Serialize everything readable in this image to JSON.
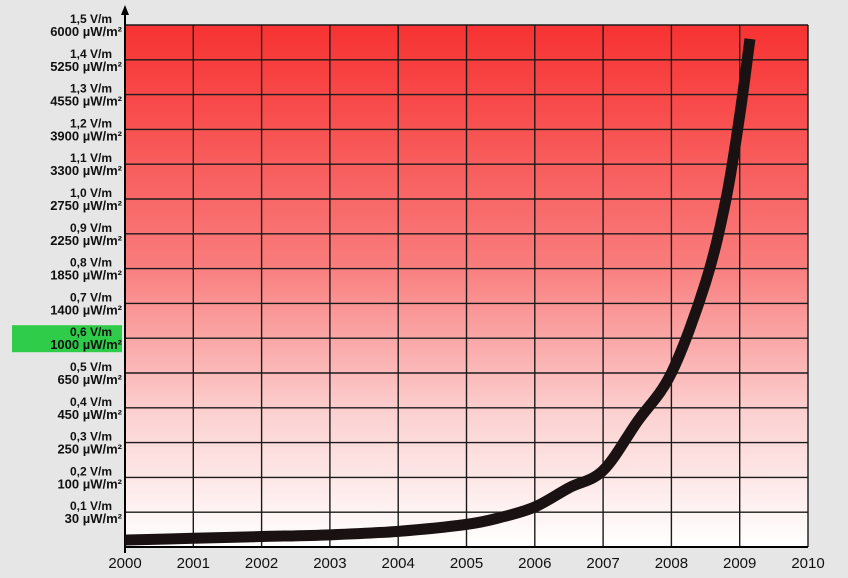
{
  "chart_data": {
    "type": "line",
    "title": "",
    "xlabel": "",
    "ylabel": "",
    "xlim": [
      2000,
      2010
    ],
    "ylim": [
      0,
      15
    ],
    "grid": true,
    "x_ticks": [
      "2000",
      "2001",
      "2002",
      "2003",
      "2004",
      "2005",
      "2006",
      "2007",
      "2008",
      "2009",
      "2010"
    ],
    "y_ticks": [
      {
        "field": "0,1 V/m",
        "power": "30 µW/m²",
        "highlight": false
      },
      {
        "field": "0,2 V/m",
        "power": "100 µW/m²",
        "highlight": false
      },
      {
        "field": "0,3 V/m",
        "power": "250 µW/m²",
        "highlight": false
      },
      {
        "field": "0,4 V/m",
        "power": "450 µW/m²",
        "highlight": false
      },
      {
        "field": "0,5 V/m",
        "power": "650 µW/m²",
        "highlight": false
      },
      {
        "field": "0,6 V/m",
        "power": "1000 µW/m²",
        "highlight": true
      },
      {
        "field": "0,7 V/m",
        "power": "1400 µW/m²",
        "highlight": false
      },
      {
        "field": "0,8 V/m",
        "power": "1850 µW/m²",
        "highlight": false
      },
      {
        "field": "0,9 V/m",
        "power": "2250 µW/m²",
        "highlight": false
      },
      {
        "field": "1,0 V/m",
        "power": "2750 µW/m²",
        "highlight": false
      },
      {
        "field": "1,1 V/m",
        "power": "3300 µW/m²",
        "highlight": false
      },
      {
        "field": "1,2 V/m",
        "power": "3900 µW/m²",
        "highlight": false
      },
      {
        "field": "1,3 V/m",
        "power": "4550 µW/m²",
        "highlight": false
      },
      {
        "field": "1,4 V/m",
        "power": "5250 µW/m²",
        "highlight": false
      },
      {
        "field": "1,5 V/m",
        "power": "6000 µW/m²",
        "highlight": false
      }
    ],
    "series": [
      {
        "x": [
          2000,
          2001,
          2002,
          2003,
          2004,
          2005,
          2005.5,
          2006,
          2006.5,
          2007,
          2007.5,
          2008,
          2008.5,
          2008.8,
          2009,
          2009.15
        ],
        "y": [
          0.2,
          0.25,
          0.3,
          0.35,
          0.45,
          0.65,
          0.85,
          1.15,
          1.7,
          2.2,
          3.6,
          5.0,
          7.6,
          10.0,
          12.4,
          14.6
        ]
      }
    ],
    "colors": {
      "background_top": "#f73232",
      "background_bottom": "#ffffff",
      "line": "#1a1212",
      "highlight": "#2ecc49",
      "grid": "#1a1a1a",
      "page": "#e6e6e6"
    }
  }
}
